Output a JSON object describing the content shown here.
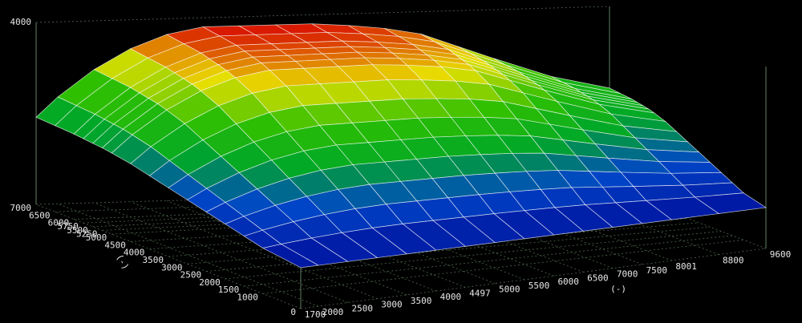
{
  "chart_data": {
    "type": "surface",
    "xlabel": "(-)",
    "ylabel": "(-)",
    "xlim": [
      1700,
      9600
    ],
    "ylim": [
      0,
      7000
    ],
    "zlim": [
      0,
      4000
    ],
    "xticks": [
      1700,
      2000,
      2500,
      3000,
      3500,
      4000,
      4497,
      5000,
      5500,
      6000,
      6500,
      7000,
      7500,
      8001,
      8800,
      9600
    ],
    "yticks": [
      0,
      1000,
      1500,
      2000,
      2500,
      3000,
      3500,
      4000,
      4500,
      5000,
      5250,
      5500,
      5750,
      6000,
      6500,
      7000
    ],
    "zticks": [
      4000
    ],
    "colormap": [
      "#0014a0",
      "#0046c8",
      "#00a828",
      "#30c000",
      "#e8e000",
      "#d81000"
    ],
    "x": [
      1700,
      2000,
      2500,
      3000,
      3500,
      4000,
      4497,
      5000,
      5500,
      6000,
      6500,
      7000,
      7500,
      8001,
      8800,
      9600
    ],
    "y": [
      0,
      1000,
      1500,
      2000,
      2500,
      3000,
      3500,
      4000,
      4500,
      5000,
      5250,
      5500,
      5750,
      6000,
      6500,
      7000
    ],
    "z": [
      [
        900,
        900,
        900,
        900,
        900,
        900,
        900,
        900,
        900,
        900,
        900,
        900,
        900,
        900,
        900,
        900
      ],
      [
        1002,
        1045,
        1103,
        1147,
        1176,
        1190,
        1190,
        1190,
        1190,
        1184,
        1176,
        1161,
        1132,
        1103,
        1060,
        1031
      ],
      [
        1103,
        1190,
        1306,
        1393,
        1451,
        1480,
        1480,
        1480,
        1480,
        1468,
        1451,
        1422,
        1364,
        1306,
        1219,
        1161
      ],
      [
        1205,
        1335,
        1509,
        1640,
        1727,
        1770,
        1770,
        1770,
        1770,
        1753,
        1727,
        1683,
        1596,
        1509,
        1379,
        1292
      ],
      [
        1306,
        1480,
        1712,
        1886,
        2002,
        2060,
        2060,
        2060,
        2060,
        2037,
        2002,
        1944,
        1828,
        1712,
        1538,
        1422
      ],
      [
        1408,
        1625,
        1915,
        2133,
        2278,
        2350,
        2350,
        2350,
        2350,
        2321,
        2278,
        2205,
        2060,
        1915,
        1698,
        1553
      ],
      [
        1509,
        1770,
        2118,
        2379,
        2553,
        2640,
        2640,
        2640,
        2640,
        2605,
        2553,
        2466,
        2292,
        2118,
        1857,
        1683
      ],
      [
        1611,
        1915,
        2321,
        2626,
        2829,
        2930,
        2930,
        2930,
        2930,
        2889,
        2829,
        2727,
        2524,
        2321,
        2017,
        1814
      ],
      [
        1712,
        2060,
        2524,
        2872,
        3104,
        3220,
        3220,
        3220,
        3220,
        3174,
        3104,
        2988,
        2756,
        2524,
        2176,
        1944
      ],
      [
        1783,
        2162,
        2666,
        3045,
        3297,
        3423,
        3423,
        3423,
        3423,
        3373,
        3297,
        3171,
        2918,
        2666,
        2288,
        2035
      ],
      [
        1814,
        2205,
        2727,
        3119,
        3380,
        3510,
        3510,
        3510,
        3510,
        3458,
        3380,
        3249,
        2988,
        2727,
        2336,
        2075
      ],
      [
        1834,
        2234,
        2768,
        3168,
        3435,
        3568,
        3568,
        3568,
        3568,
        3515,
        3435,
        3301,
        3034,
        2768,
        2367,
        2101
      ],
      [
        1854,
        2263,
        2808,
        3217,
        3490,
        3626,
        3626,
        3626,
        3626,
        3571,
        3490,
        3353,
        3081,
        2808,
        2399,
        2127
      ],
      [
        1874,
        2292,
        2849,
        3266,
        3545,
        3684,
        3684,
        3684,
        3684,
        3628,
        3545,
        3406,
        3127,
        2849,
        2431,
        2153
      ],
      [
        1895,
        2321,
        2889,
        3316,
        3600,
        3742,
        3742,
        3742,
        3742,
        3685,
        3600,
        3458,
        3174,
        2889,
        2463,
        2179
      ],
      [
        1915,
        2350,
        2930,
        3365,
        3655,
        3800,
        3800,
        3800,
        3800,
        3742,
        3655,
        3510,
        3220,
        2930,
        2495,
        2205
      ]
    ]
  }
}
